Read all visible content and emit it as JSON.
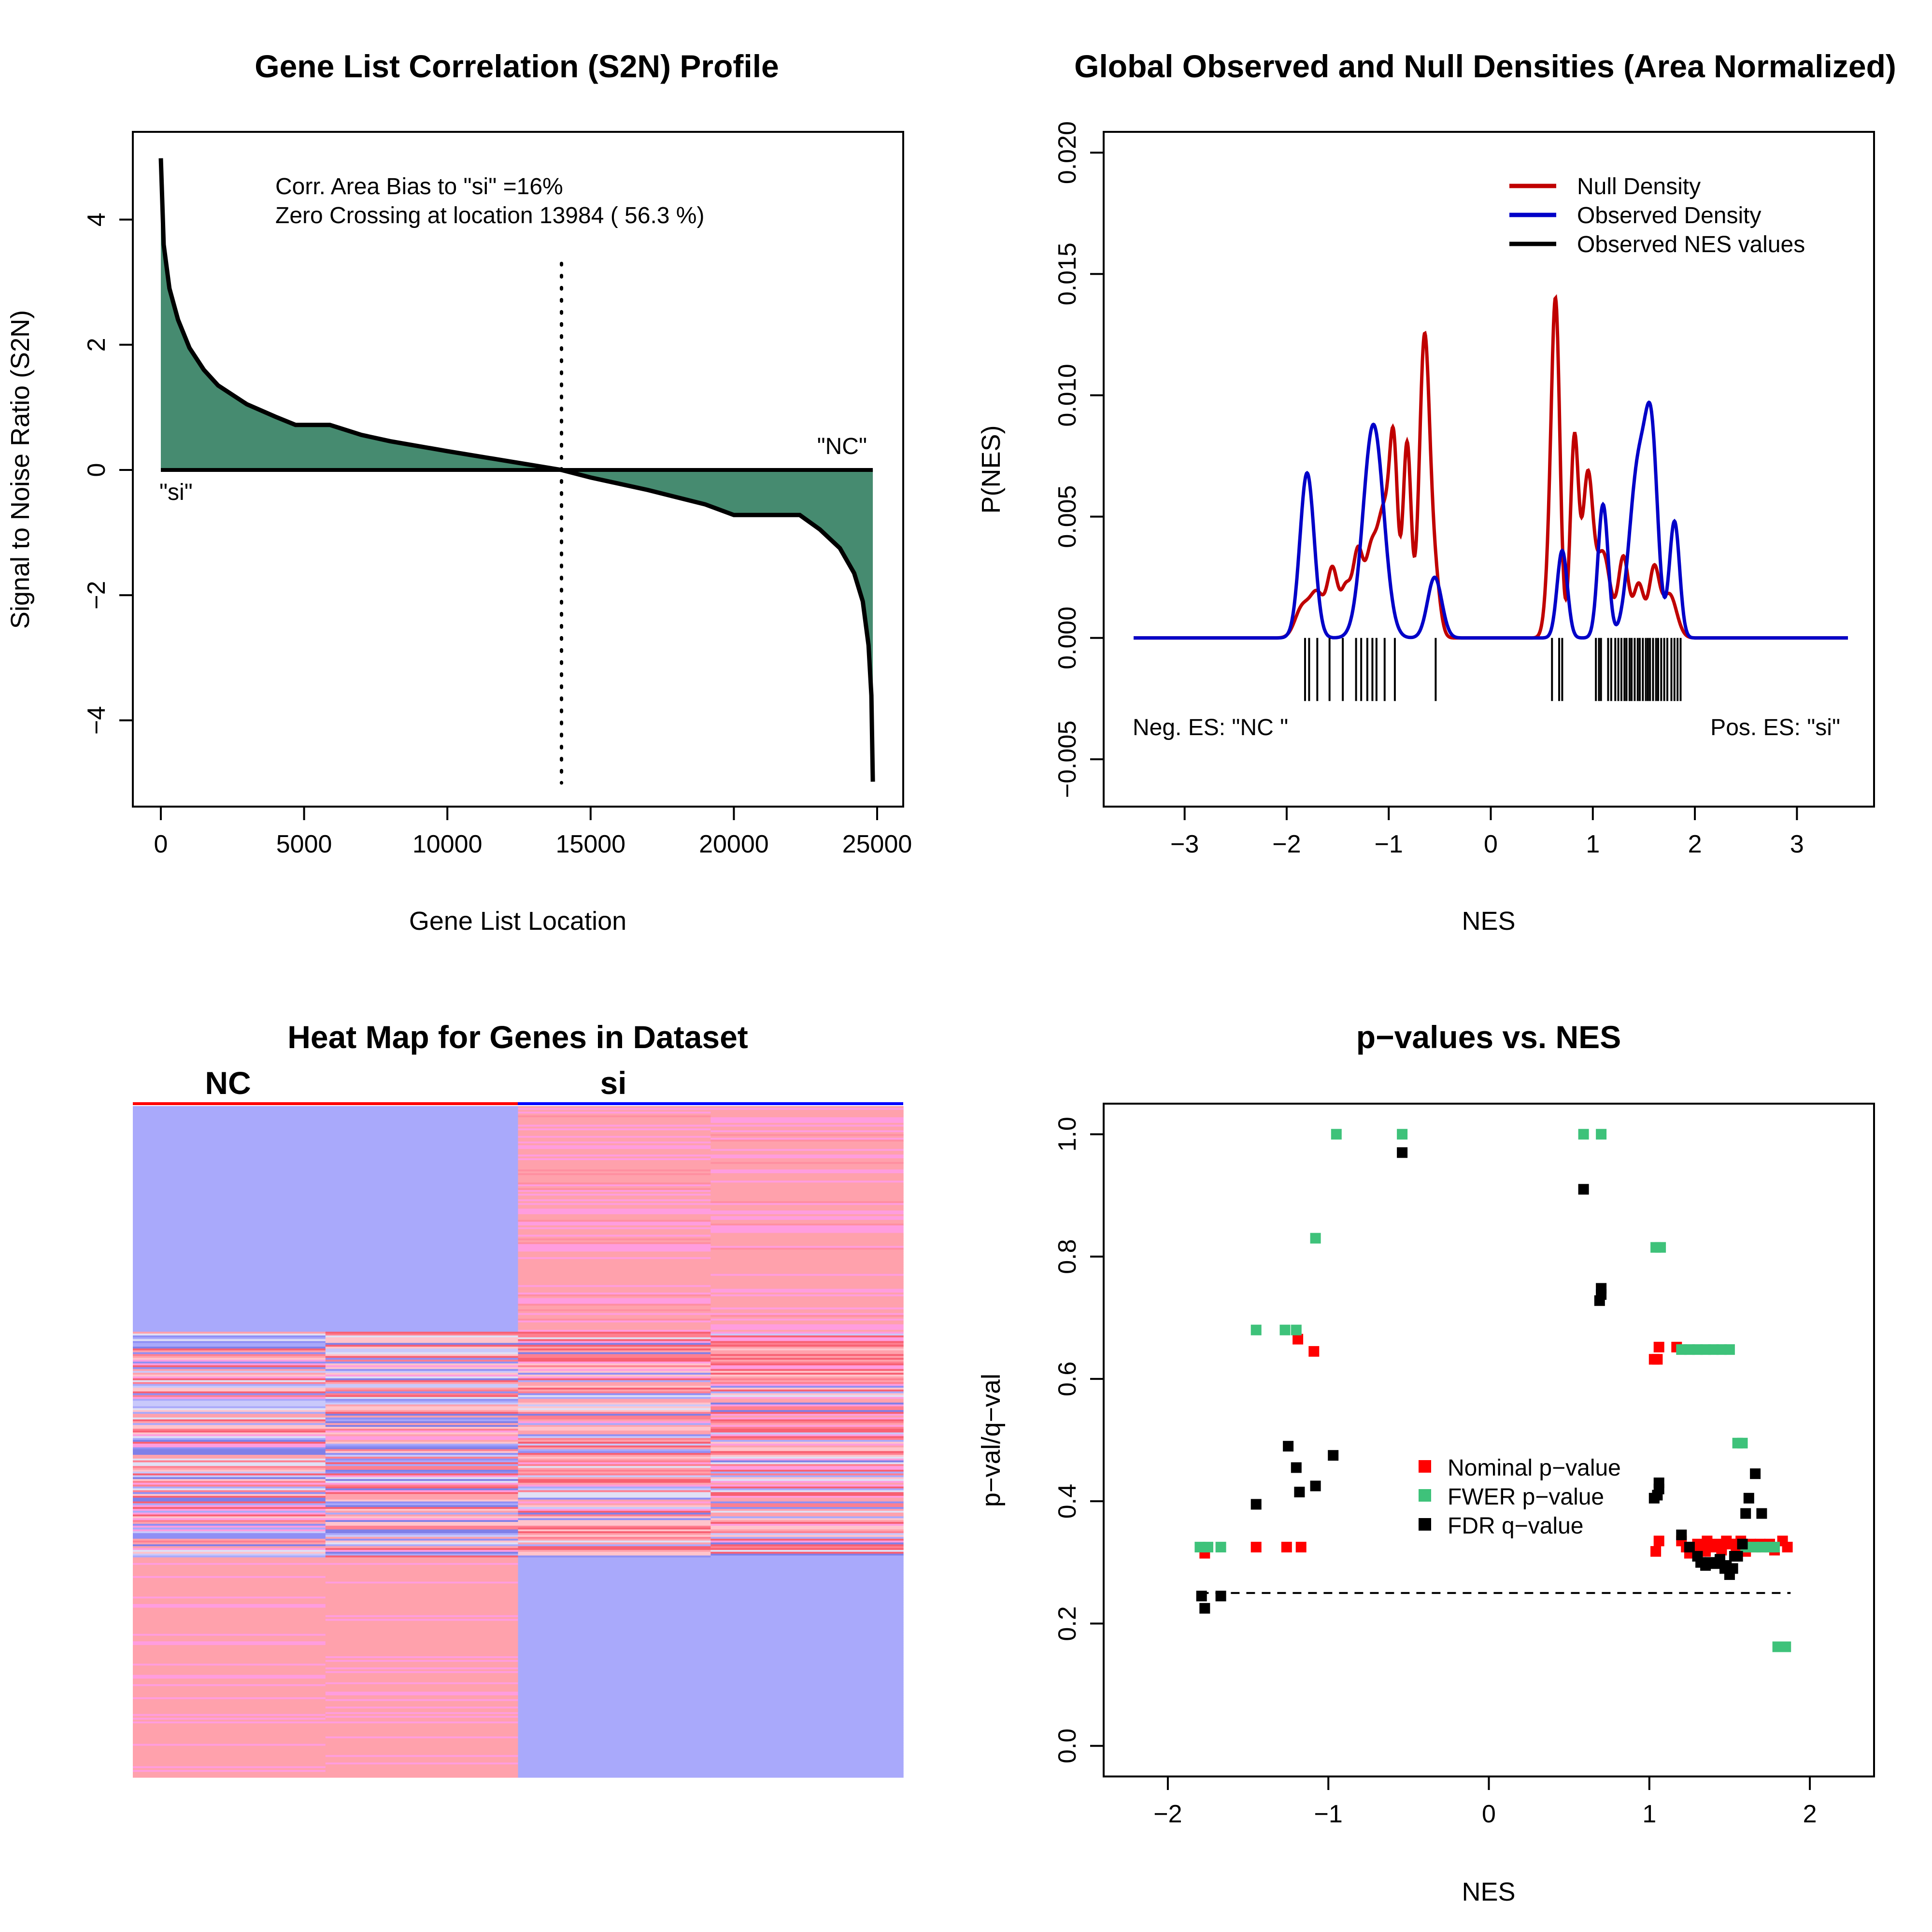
{
  "colors": {
    "fill_green": "#468b70",
    "null_red": "#c00000",
    "observed_blue": "#0000c8",
    "nominal_red": "#ff0000",
    "fwer_green": "#3ec27a",
    "fdr_black": "#000000",
    "heat_blue": "#a9a9fb",
    "heat_pink": "#ffa1ac",
    "heat_magenta": "#ff9ddf",
    "heat_red": "#f86072"
  },
  "chart_data": [
    {
      "type": "area",
      "title": "Gene List Correlation (S2N) Profile",
      "xlabel": "Gene List Location",
      "ylabel": "Signal to Noise Ratio (S2N)",
      "xlim": [
        0,
        25000
      ],
      "ylim": [
        -5,
        5
      ],
      "xticks": [
        0,
        5000,
        10000,
        15000,
        20000,
        25000
      ],
      "yticks": [
        -4,
        -2,
        0,
        2,
        4
      ],
      "xtick_labels": [
        "0",
        "5000",
        "10000",
        "15000",
        "20000",
        "25000"
      ],
      "ytick_labels": [
        "−4",
        "−2",
        "0",
        "2",
        "4"
      ],
      "x": [
        0,
        100,
        300,
        600,
        1000,
        1500,
        2000,
        3000,
        4000,
        4700,
        5900,
        7000,
        8000,
        10000,
        12000,
        13984,
        15000,
        17000,
        19000,
        20000,
        22300,
        23000,
        23700,
        24200,
        24500,
        24700,
        24800,
        24850
      ],
      "values": [
        4.98,
        3.6,
        2.9,
        2.4,
        1.95,
        1.6,
        1.35,
        1.05,
        0.85,
        0.72,
        0.72,
        0.56,
        0.46,
        0.3,
        0.15,
        0.0,
        -0.12,
        -0.32,
        -0.55,
        -0.72,
        -0.72,
        -0.95,
        -1.25,
        -1.65,
        -2.1,
        -2.8,
        -3.6,
        -4.98
      ],
      "zero_crossing": 13984,
      "annotations": {
        "bias": "Corr. Area Bias to \"si\" =16%",
        "crossing": "Zero Crossing at location  13984  ( 56.3  %)",
        "left_label": "\"si\"",
        "right_label": "\"NC\""
      }
    },
    {
      "type": "line",
      "title": "Global Observed and Null Densities (Area Normalized)",
      "xlabel": "NES",
      "ylabel": "P(NES)",
      "xlim": [
        -3.5,
        3.5
      ],
      "ylim": [
        -0.005,
        0.02
      ],
      "xticks": [
        -3,
        -2,
        -1,
        0,
        1,
        2,
        3
      ],
      "yticks": [
        -0.005,
        0.0,
        0.005,
        0.01,
        0.015,
        0.02
      ],
      "xtick_labels": [
        "−3",
        "−2",
        "−1",
        "0",
        "1",
        "2",
        "3"
      ],
      "ytick_labels": [
        "−0.005",
        "0.000",
        "0.005",
        "0.010",
        "0.015",
        "0.020"
      ],
      "series": [
        {
          "name": "Null Density",
          "peaks": [
            [
              -1.85,
              0.0012,
              0.07
            ],
            [
              -1.7,
              0.0018,
              0.07
            ],
            [
              -1.55,
              0.0027,
              0.05
            ],
            [
              -1.42,
              0.002,
              0.05
            ],
            [
              -1.3,
              0.0035,
              0.05
            ],
            [
              -1.18,
              0.0028,
              0.05
            ],
            [
              -1.05,
              0.0052,
              0.07
            ],
            [
              -0.95,
              0.0066,
              0.04
            ],
            [
              -0.82,
              0.008,
              0.04
            ],
            [
              -0.65,
              0.0122,
              0.05
            ],
            [
              -0.55,
              0.0025,
              0.05
            ],
            [
              0.6,
              0.0042,
              0.05
            ],
            [
              0.64,
              0.0108,
              0.04
            ],
            [
              0.82,
              0.0082,
              0.04
            ],
            [
              0.95,
              0.0065,
              0.05
            ],
            [
              1.1,
              0.0035,
              0.07
            ],
            [
              1.3,
              0.0033,
              0.05
            ],
            [
              1.45,
              0.0022,
              0.05
            ],
            [
              1.6,
              0.0028,
              0.05
            ],
            [
              1.75,
              0.0018,
              0.07
            ]
          ]
        },
        {
          "name": "Observed Density",
          "peaks": [
            [
              -1.8,
              0.0068,
              0.07
            ],
            [
              -1.15,
              0.0088,
              0.1
            ],
            [
              -0.55,
              0.0025,
              0.07
            ],
            [
              0.7,
              0.0036,
              0.05
            ],
            [
              1.1,
              0.0055,
              0.05
            ],
            [
              1.45,
              0.0072,
              0.09
            ],
            [
              1.58,
              0.0066,
              0.06
            ],
            [
              1.8,
              0.0048,
              0.05
            ]
          ]
        }
      ],
      "rug": [
        -1.82,
        -1.78,
        -1.7,
        -1.58,
        -1.45,
        -1.32,
        -1.27,
        -1.21,
        -1.16,
        -1.12,
        -1.04,
        -0.94,
        -0.54,
        0.6,
        0.67,
        0.7,
        1.03,
        1.06,
        1.08,
        1.15,
        1.18,
        1.22,
        1.25,
        1.28,
        1.31,
        1.33,
        1.36,
        1.38,
        1.41,
        1.44,
        1.46,
        1.49,
        1.52,
        1.54,
        1.56,
        1.59,
        1.62,
        1.64,
        1.67,
        1.7,
        1.73,
        1.77,
        1.8,
        1.83,
        1.86
      ],
      "legend": [
        "Null Density",
        "Observed Density",
        "Observed NES values"
      ],
      "legend_position": "top-right",
      "annotations": {
        "neg": "Neg. ES: \"NC \"",
        "pos": "Pos. ES: \"si\""
      }
    },
    {
      "type": "heatmap",
      "title": "Heat Map for Genes in Dataset",
      "groups": [
        "NC",
        "si"
      ],
      "columns": 4,
      "blocks": [
        {
          "rows_from": 0.0,
          "rows_to": 0.335,
          "columns": [
            "blue",
            "blue",
            "pink",
            "pink"
          ]
        },
        {
          "rows_from": 0.335,
          "rows_to": 0.67,
          "columns": [
            "mixed",
            "mixed",
            "mixed-red",
            "mixed-red"
          ]
        },
        {
          "rows_from": 0.67,
          "rows_to": 1.0,
          "columns": [
            "pink",
            "pink",
            "blue",
            "blue"
          ]
        }
      ]
    },
    {
      "type": "scatter",
      "title": "p−values vs. NES",
      "xlabel": "NES",
      "ylabel": "p−val/q−val",
      "xlim": [
        -2.4,
        2.4
      ],
      "ylim": [
        -0.05,
        1.05
      ],
      "xticks": [
        -2,
        -1,
        0,
        1,
        2
      ],
      "yticks": [
        0.0,
        0.2,
        0.4,
        0.6,
        0.8,
        1.0
      ],
      "xtick_labels": [
        "−2",
        "−1",
        "0",
        "1",
        "2"
      ],
      "ytick_labels": [
        "0.0",
        "0.2",
        "0.4",
        "0.6",
        "0.8",
        "1.0"
      ],
      "reference_line": 0.25,
      "legend": [
        "Nominal p−value",
        "FWER p−value",
        "FDR q−value"
      ],
      "legend_position": "center-right",
      "series": [
        {
          "name": "Nominal p−value",
          "x": [
            -1.77,
            -1.45,
            -1.26,
            -1.17,
            -1.19,
            -1.09,
            1.03,
            1.05,
            1.06,
            1.04,
            1.06,
            1.17,
            1.2,
            1.23,
            1.27,
            1.3,
            1.33,
            1.36,
            1.39,
            1.42,
            1.45,
            1.48,
            1.51,
            1.54,
            1.57,
            1.6,
            1.63,
            1.66,
            1.69,
            1.72,
            1.75,
            1.78,
            1.83,
            1.86,
            1.25,
            1.35,
            1.45,
            1.55
          ],
          "y": [
            0.315,
            0.325,
            0.325,
            0.325,
            0.665,
            0.645,
            0.632,
            0.632,
            0.652,
            0.318,
            0.335,
            0.652,
            0.335,
            0.325,
            0.325,
            0.33,
            0.325,
            0.335,
            0.325,
            0.33,
            0.325,
            0.335,
            0.33,
            0.325,
            0.335,
            0.318,
            0.33,
            0.325,
            0.33,
            0.325,
            0.33,
            0.32,
            0.335,
            0.325,
            0.315,
            0.318,
            0.32,
            0.33
          ]
        },
        {
          "name": "FWER p−value",
          "x": [
            -1.8,
            -1.75,
            -1.67,
            -1.45,
            -1.27,
            -1.2,
            -1.08,
            -0.95,
            -0.54,
            0.59,
            0.7,
            1.04,
            1.07,
            1.2,
            1.25,
            1.3,
            1.35,
            1.4,
            1.45,
            1.5,
            1.55,
            1.58,
            1.6,
            1.65,
            1.7,
            1.75,
            1.78,
            1.8,
            1.85
          ],
          "y": [
            0.325,
            0.325,
            0.325,
            0.68,
            0.68,
            0.68,
            0.83,
            1.0,
            1.0,
            1.0,
            1.0,
            0.815,
            0.815,
            0.648,
            0.648,
            0.648,
            0.648,
            0.648,
            0.648,
            0.648,
            0.495,
            0.495,
            0.325,
            0.325,
            0.325,
            0.325,
            0.325,
            0.162,
            0.162
          ]
        },
        {
          "name": "FDR q−value",
          "x": [
            -1.79,
            -1.77,
            -1.67,
            -1.45,
            -1.25,
            -1.2,
            -1.18,
            -1.08,
            -0.97,
            -0.54,
            0.59,
            0.69,
            0.7,
            0.7,
            1.03,
            1.05,
            1.06,
            1.06,
            1.2,
            1.25,
            1.3,
            1.32,
            1.35,
            1.38,
            1.41,
            1.44,
            1.47,
            1.5,
            1.52,
            1.55,
            1.58,
            1.6,
            1.62,
            1.66,
            1.7,
            1.48,
            1.53
          ],
          "y": [
            0.245,
            0.225,
            0.245,
            0.395,
            0.49,
            0.455,
            0.415,
            0.425,
            0.475,
            0.97,
            0.91,
            0.728,
            0.738,
            0.748,
            0.405,
            0.41,
            0.42,
            0.43,
            0.345,
            0.325,
            0.31,
            0.3,
            0.295,
            0.3,
            0.298,
            0.305,
            0.29,
            0.28,
            0.29,
            0.31,
            0.33,
            0.38,
            0.405,
            0.445,
            0.38,
            0.295,
            0.31
          ]
        }
      ]
    }
  ]
}
